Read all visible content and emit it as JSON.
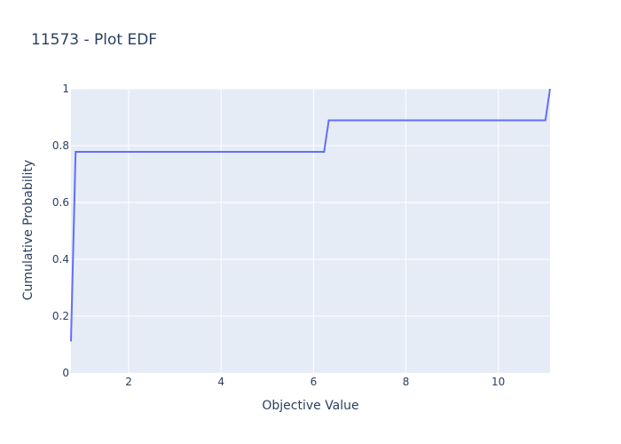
{
  "chart_data": {
    "type": "line",
    "title": "11573 - Plot EDF",
    "xlabel": "Objective Value",
    "ylabel": "Cumulative Probability",
    "xlim": [
      0.75,
      11.12
    ],
    "ylim": [
      0,
      1
    ],
    "x_ticks": [
      2,
      4,
      6,
      8,
      10
    ],
    "y_ticks": [
      0,
      0.2,
      0.4,
      0.6,
      0.8,
      1
    ],
    "y_tick_labels": [
      "0",
      "0.2",
      "0.4",
      "0.6",
      "0.8",
      "1"
    ],
    "grid": true,
    "line_color": "#636efa",
    "plot_bg": "#e5ecf6",
    "series": [
      {
        "x": [
          0.75,
          0.85,
          6.23,
          6.33,
          11.02,
          11.12
        ],
        "y": [
          0.111,
          0.778,
          0.778,
          0.889,
          0.889,
          1.0
        ]
      }
    ]
  }
}
